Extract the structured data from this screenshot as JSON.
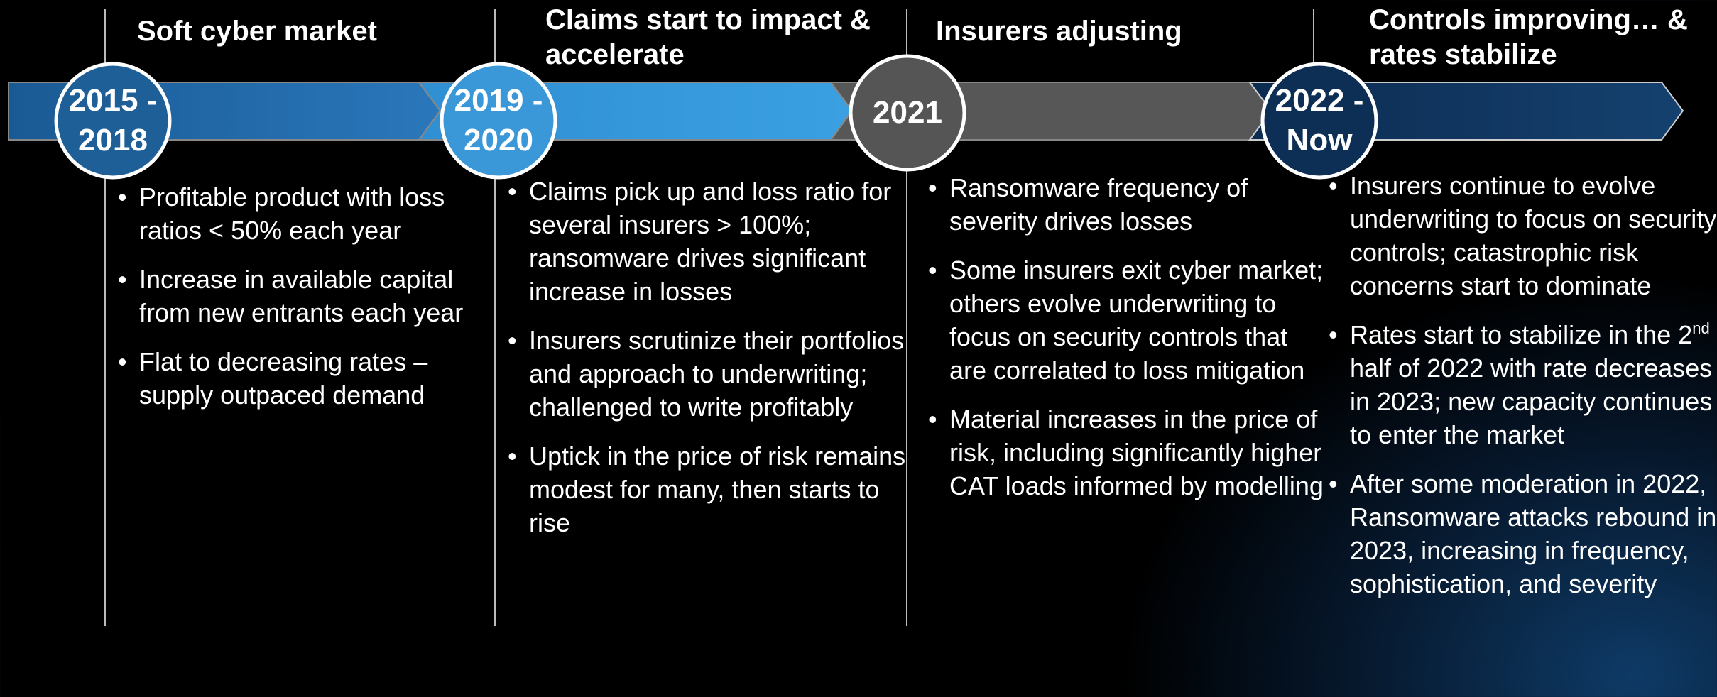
{
  "phases": [
    {
      "period": "2015 - 2018",
      "title": "Soft cyber market",
      "bullets": [
        "Profitable product with loss ratios < 50% each year",
        "Increase in available capital from new entrants each year",
        "Flat to decreasing rates – supply outpaced demand"
      ]
    },
    {
      "period": "2019 - 2020",
      "title": "Claims start to impact & accelerate",
      "bullets": [
        "Claims pick up and loss ratio for several insurers > 100%; ransomware drives significant increase in losses",
        "Insurers scrutinize their portfolios and approach to underwriting; challenged to write profitably",
        "Uptick in the price of risk remains modest for many, then starts to rise"
      ]
    },
    {
      "period": "2021",
      "title": "Insurers adjusting",
      "bullets": [
        "Ransomware frequency of severity drives losses",
        "Some insurers exit cyber market; others evolve underwriting to focus on security controls that are correlated to loss mitigation",
        "Material increases in the price of risk, including significantly higher CAT loads informed by modelling"
      ]
    },
    {
      "period": "2022 - Now",
      "title": "Controls improving… & rates stabilize",
      "bullets": [
        "Insurers continue to evolve underwriting to focus on security controls; catastrophic risk concerns start to dominate",
        {
          "parts": [
            "Rates start to stabilize in the 2",
            "nd",
            " half of 2022 with rate decreases in 2023; new capacity continues to enter the market"
          ]
        },
        "After some moderation in 2022, Ransomware attacks rebound in 2023, increasing in frequency, sophistication, and severity"
      ]
    }
  ]
}
